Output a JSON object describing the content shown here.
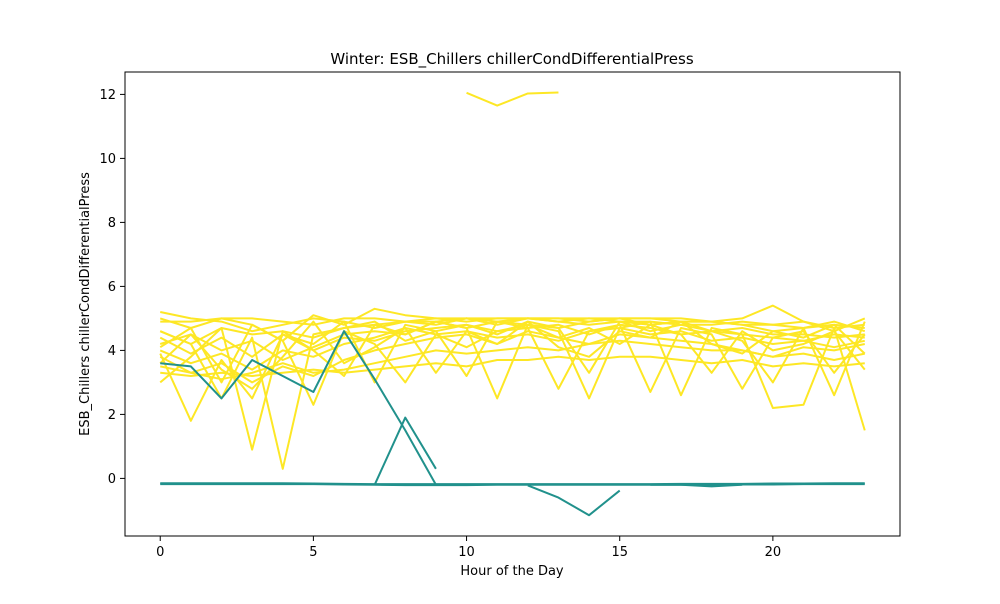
{
  "chart_data": {
    "type": "line",
    "title": "Winter: ESB_Chillers chillerCondDifferentialPress",
    "xlabel": "Hour of the Day",
    "ylabel": "ESB_Chillers chillerCondDifferentialPress",
    "xlim": [
      -1.15,
      24.15
    ],
    "ylim": [
      -1.8,
      12.7
    ],
    "x_ticks": [
      0,
      5,
      10,
      15,
      20
    ],
    "y_ticks": [
      0,
      2,
      4,
      6,
      8,
      10,
      12
    ],
    "grid": false,
    "legend": "none",
    "colors": {
      "yellow": "#fde725",
      "teal": "#21918c"
    },
    "series": [
      {
        "color": "yellow",
        "x": [
          0,
          1,
          2,
          3,
          4,
          5,
          6,
          7,
          8,
          9,
          10,
          11,
          12,
          13,
          14,
          15,
          16,
          17,
          18,
          19,
          20,
          21,
          22,
          23
        ],
        "y": [
          5.2,
          5.0,
          4.9,
          4.6,
          4.8,
          5.0,
          4.9,
          4.7,
          4.9,
          5.0,
          4.9,
          5.0,
          5.0,
          4.9,
          5.0,
          4.9,
          4.8,
          4.9,
          4.9,
          4.8,
          4.8,
          4.7,
          4.8,
          4.7
        ]
      },
      {
        "color": "yellow",
        "x": [
          0,
          1,
          2,
          3,
          4,
          5,
          6,
          7,
          8,
          9,
          10,
          11,
          12,
          13,
          14,
          15,
          16,
          17,
          18,
          19,
          20,
          21,
          22,
          23
        ],
        "y": [
          5.0,
          4.7,
          5.0,
          4.8,
          4.3,
          5.1,
          4.8,
          5.3,
          5.1,
          5.0,
          5.0,
          5.0,
          5.0,
          5.0,
          4.9,
          5.0,
          5.0,
          5.0,
          4.9,
          5.0,
          5.4,
          4.9,
          4.6,
          5.0
        ]
      },
      {
        "color": "yellow",
        "x": [
          0,
          1,
          2,
          3,
          4,
          5,
          6,
          7,
          8,
          9,
          10,
          11,
          12,
          13,
          14,
          15,
          16,
          17,
          18,
          19,
          20,
          21,
          22,
          23
        ],
        "y": [
          4.9,
          4.9,
          5.0,
          5.0,
          4.9,
          4.8,
          5.0,
          5.0,
          4.9,
          4.9,
          5.0,
          4.9,
          5.0,
          5.0,
          5.0,
          5.0,
          5.0,
          4.9,
          4.9,
          4.8,
          4.6,
          4.7,
          4.9,
          4.6
        ]
      },
      {
        "color": "yellow",
        "x": [
          0,
          1,
          2,
          3,
          4,
          5,
          6,
          7,
          8,
          9,
          10,
          11,
          12,
          13,
          14,
          15,
          16,
          17,
          18,
          19,
          20,
          21,
          22,
          23
        ],
        "y": [
          4.6,
          4.2,
          4.7,
          4.5,
          4.6,
          4.4,
          4.7,
          4.8,
          4.9,
          4.8,
          5.0,
          4.8,
          5.0,
          4.9,
          4.8,
          4.9,
          4.9,
          4.8,
          4.8,
          4.9,
          4.8,
          4.9,
          4.7,
          4.8
        ]
      },
      {
        "color": "yellow",
        "x": [
          0,
          1,
          2,
          3,
          4,
          5,
          6,
          7,
          8,
          9,
          10,
          11,
          12,
          13,
          14,
          15,
          16,
          17,
          18,
          19,
          20,
          21,
          22,
          23
        ],
        "y": [
          4.4,
          3.9,
          4.4,
          3.8,
          4.5,
          4.0,
          4.4,
          4.3,
          4.6,
          4.7,
          4.8,
          4.6,
          4.7,
          4.8,
          4.5,
          4.8,
          4.7,
          4.5,
          4.6,
          4.5,
          4.4,
          4.3,
          4.5,
          4.4
        ]
      },
      {
        "color": "yellow",
        "x": [
          0,
          1,
          2,
          3,
          4,
          5,
          6,
          7,
          8,
          9,
          10,
          11,
          12,
          13,
          14,
          15,
          16,
          17,
          18,
          19,
          20,
          21,
          22,
          23
        ],
        "y": [
          4.2,
          4.5,
          4.0,
          4.3,
          3.7,
          4.1,
          4.5,
          4.6,
          4.5,
          4.9,
          4.7,
          4.9,
          4.8,
          4.7,
          4.9,
          5.0,
          4.8,
          4.9,
          4.6,
          4.7,
          4.5,
          4.5,
          4.4,
          4.5
        ]
      },
      {
        "color": "yellow",
        "x": [
          0,
          1,
          2,
          3,
          4,
          5,
          6,
          7,
          8,
          9,
          10,
          11,
          12,
          13,
          14,
          15,
          16,
          17,
          18,
          19,
          20,
          21,
          22,
          23
        ],
        "y": [
          4.0,
          3.6,
          3.9,
          3.4,
          4.0,
          3.8,
          4.2,
          4.4,
          4.7,
          4.5,
          4.6,
          4.4,
          4.5,
          4.3,
          4.6,
          4.7,
          4.5,
          4.6,
          4.3,
          4.4,
          4.2,
          4.3,
          4.1,
          4.3
        ]
      },
      {
        "color": "yellow",
        "x": [
          0,
          1,
          2,
          3,
          4,
          5,
          6,
          7,
          8,
          9,
          10,
          11,
          12,
          13,
          14,
          15,
          16,
          17,
          18,
          19,
          20,
          21,
          22,
          23
        ],
        "y": [
          3.8,
          3.3,
          3.6,
          3.0,
          3.5,
          3.2,
          3.7,
          4.0,
          4.2,
          4.4,
          4.5,
          4.2,
          4.6,
          4.4,
          4.2,
          4.5,
          4.4,
          4.3,
          4.2,
          4.0,
          3.8,
          4.1,
          4.0,
          4.2
        ]
      },
      {
        "color": "yellow",
        "x": [
          0,
          1,
          2,
          3,
          4,
          5,
          6,
          7,
          8,
          9,
          10,
          11,
          12,
          13,
          14,
          15,
          16,
          17,
          18,
          19,
          20,
          21,
          22,
          23
        ],
        "y": [
          3.5,
          3.3,
          3.1,
          3.3,
          3.6,
          3.3,
          3.4,
          3.6,
          3.8,
          4.0,
          3.9,
          4.0,
          4.1,
          4.0,
          4.2,
          4.3,
          4.2,
          4.1,
          4.0,
          4.0,
          3.8,
          3.9,
          3.7,
          3.9
        ]
      },
      {
        "color": "yellow",
        "x": [
          0,
          1,
          2,
          3,
          4,
          5,
          6,
          7,
          8,
          9,
          10,
          11,
          12,
          13,
          14,
          15,
          16,
          17,
          18,
          19,
          20,
          21,
          22,
          23
        ],
        "y": [
          3.3,
          3.2,
          3.3,
          3.2,
          3.3,
          3.4,
          3.3,
          3.4,
          3.5,
          3.6,
          3.5,
          3.7,
          3.7,
          3.8,
          3.7,
          3.8,
          3.8,
          3.7,
          3.6,
          3.7,
          3.5,
          3.6,
          3.5,
          3.6
        ]
      },
      {
        "color": "yellow",
        "x": [
          0,
          1,
          2,
          3,
          4,
          5,
          6,
          7,
          8,
          9,
          10,
          11,
          12,
          13,
          14,
          15,
          16,
          17,
          18,
          19,
          20,
          21,
          22,
          23
        ],
        "y": [
          3.9,
          1.8,
          3.7,
          2.5,
          4.5,
          4.2,
          4.9,
          3.0,
          4.8,
          4.6,
          3.2,
          4.9,
          4.7,
          2.8,
          4.6,
          4.8,
          2.7,
          4.7,
          4.5,
          2.8,
          4.4,
          4.6,
          3.3,
          4.5
        ]
      },
      {
        "color": "yellow",
        "x": [
          0,
          1,
          2,
          3,
          4,
          5,
          6,
          7,
          8,
          9,
          10,
          11,
          12,
          13,
          14,
          15,
          16,
          17,
          18,
          19,
          20,
          21,
          22,
          23
        ],
        "y": [
          3.0,
          3.8,
          4.7,
          0.9,
          4.6,
          4.0,
          3.2,
          4.8,
          4.5,
          4.9,
          4.7,
          2.5,
          4.8,
          4.6,
          2.5,
          4.7,
          4.9,
          2.6,
          4.7,
          4.5,
          2.2,
          2.3,
          4.7,
          1.5
        ]
      },
      {
        "color": "yellow",
        "x": [
          0,
          1,
          2,
          3,
          4,
          5,
          6,
          7,
          8,
          9,
          10,
          11,
          12,
          13,
          14,
          15,
          16,
          17,
          18,
          19,
          20,
          21,
          22,
          23
        ],
        "y": [
          4.6,
          4.2,
          2.5,
          4.4,
          0.3,
          4.5,
          4.7,
          4.9,
          4.3,
          4.6,
          4.8,
          4.5,
          4.9,
          4.7,
          3.3,
          4.9,
          4.6,
          4.8,
          4.6,
          4.3,
          3.0,
          4.7,
          2.6,
          4.9
        ]
      },
      {
        "color": "yellow",
        "x": [
          0,
          1,
          2,
          3,
          4,
          5,
          6,
          7,
          8,
          9,
          10,
          11,
          12,
          13,
          14,
          15,
          16,
          17,
          18,
          19,
          20,
          21,
          22,
          23
        ],
        "y": [
          4.1,
          4.7,
          3.0,
          4.8,
          4.3,
          2.3,
          4.6,
          4.2,
          3.0,
          4.5,
          4.1,
          4.6,
          4.8,
          4.4,
          4.7,
          4.2,
          4.8,
          4.5,
          3.3,
          4.6,
          4.0,
          4.2,
          4.6,
          3.4
        ]
      },
      {
        "color": "yellow",
        "x": [
          0,
          1,
          2,
          3,
          4,
          5,
          6,
          7,
          8,
          9,
          10,
          11,
          12,
          13,
          14,
          15,
          16,
          17,
          18,
          19,
          20,
          21,
          22,
          23
        ],
        "y": [
          3.6,
          4.5,
          3.4,
          2.8,
          3.8,
          4.9,
          3.6,
          4.1,
          4.7,
          3.3,
          4.6,
          4.2,
          4.9,
          4.1,
          3.8,
          4.6,
          4.4,
          4.9,
          4.2,
          3.9,
          4.6,
          4.4,
          4.8,
          3.9
        ]
      },
      {
        "color": "yellow",
        "x": [
          10,
          11,
          12,
          13
        ],
        "y": [
          12.05,
          11.65,
          12.03,
          12.06
        ]
      },
      {
        "color": "teal",
        "x": [
          0,
          1,
          2,
          3,
          4,
          5,
          6,
          7,
          8,
          9,
          10,
          11,
          12,
          13,
          14,
          15,
          16,
          17,
          18,
          19,
          20,
          21,
          22,
          23
        ],
        "y": [
          -0.15,
          -0.15,
          -0.15,
          -0.15,
          -0.15,
          -0.16,
          -0.17,
          -0.18,
          -0.18,
          -0.18,
          -0.18,
          -0.18,
          -0.18,
          -0.18,
          -0.18,
          -0.18,
          -0.18,
          -0.17,
          -0.17,
          -0.17,
          -0.16,
          -0.16,
          -0.15,
          -0.15
        ]
      },
      {
        "color": "teal",
        "x": [
          0,
          1,
          2,
          3,
          4,
          5,
          6,
          7,
          8,
          9,
          10,
          11,
          12,
          13,
          14,
          15,
          16,
          17,
          18,
          19,
          20,
          21,
          22,
          23
        ],
        "y": [
          -0.18,
          -0.18,
          -0.18,
          -0.18,
          -0.18,
          -0.18,
          -0.19,
          -0.2,
          -0.21,
          -0.21,
          -0.21,
          -0.2,
          -0.2,
          -0.2,
          -0.2,
          -0.2,
          -0.2,
          -0.2,
          -0.2,
          -0.19,
          -0.19,
          -0.18,
          -0.18,
          -0.18
        ]
      },
      {
        "color": "teal",
        "x": [
          0,
          1,
          2,
          3,
          4,
          5,
          6,
          7,
          8,
          9
        ],
        "y": [
          3.6,
          3.5,
          2.5,
          3.7,
          3.2,
          2.7,
          4.6,
          3.1,
          1.5,
          -0.2
        ]
      },
      {
        "color": "teal",
        "x": [
          7,
          8,
          9
        ],
        "y": [
          -0.2,
          1.9,
          0.3
        ]
      },
      {
        "color": "teal",
        "x": [
          12,
          13,
          14,
          15
        ],
        "y": [
          -0.22,
          -0.6,
          -1.15,
          -0.38
        ]
      },
      {
        "color": "teal",
        "x": [
          16,
          17,
          18,
          19
        ],
        "y": [
          -0.2,
          -0.2,
          -0.25,
          -0.2
        ]
      }
    ]
  }
}
